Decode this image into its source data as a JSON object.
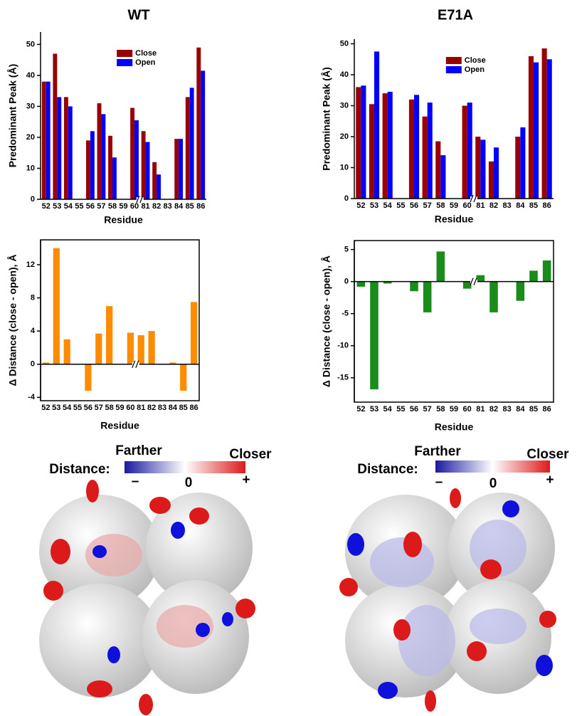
{
  "chart_data": [
    {
      "type": "bar",
      "title": "WT",
      "x_label": "Residue",
      "y_label": "Predominant Peak (Å)",
      "categories": [
        "52",
        "53",
        "54",
        "55",
        "56",
        "57",
        "58",
        "59",
        "60",
        "81",
        "82",
        "83",
        "84",
        "85",
        "86"
      ],
      "series": [
        {
          "name": "Close",
          "color": "#990000",
          "values": [
            38,
            47,
            33,
            null,
            19,
            31,
            20.5,
            null,
            29.5,
            22,
            12,
            null,
            19.5,
            33,
            49
          ]
        },
        {
          "name": "Open",
          "color": "#0000ff",
          "values": [
            38,
            33,
            30,
            null,
            22,
            27.5,
            13.5,
            null,
            25.5,
            18.5,
            8,
            null,
            19.5,
            36,
            41.5
          ]
        }
      ],
      "ylim": [
        0,
        54
      ],
      "yticks": [
        0,
        10,
        20,
        30,
        40,
        50
      ],
      "legend": "upper center",
      "frame": false
    },
    {
      "type": "bar",
      "title": "E71A",
      "x_label": "Residue",
      "y_label": "Predominant Peak (Å)",
      "categories": [
        "52",
        "53",
        "54",
        "55",
        "56",
        "57",
        "58",
        "59",
        "60",
        "81",
        "82",
        "83",
        "84",
        "85",
        "86"
      ],
      "series": [
        {
          "name": "Close",
          "color": "#990000",
          "values": [
            36,
            30.5,
            34,
            null,
            32,
            26.5,
            18.5,
            null,
            30,
            20,
            12,
            null,
            20,
            46,
            48.5
          ]
        },
        {
          "name": "Open",
          "color": "#0000ff",
          "values": [
            36.5,
            47.5,
            34.5,
            null,
            33.5,
            31,
            14,
            null,
            31,
            19,
            16.5,
            null,
            23,
            44,
            45
          ]
        }
      ],
      "ylim": [
        0,
        51.5
      ],
      "yticks": [
        0,
        10,
        20,
        30,
        40,
        50
      ],
      "legend": "upper center",
      "frame": false
    },
    {
      "type": "bar",
      "x_label": "Residue",
      "y_label": "Δ Distance (close - open), Å",
      "categories": [
        "52",
        "53",
        "54",
        "55",
        "56",
        "57",
        "58",
        "59",
        "60",
        "81",
        "82",
        "83",
        "84",
        "85",
        "86"
      ],
      "values": [
        0.2,
        14,
        3,
        null,
        -3.2,
        3.7,
        7,
        null,
        3.8,
        3.5,
        4,
        null,
        0.2,
        -3.2,
        7.5
      ],
      "color": "#ff8c00",
      "ylim": [
        -4.4,
        15
      ],
      "yticks": [
        -4,
        0,
        4,
        8,
        12
      ],
      "frame": true
    },
    {
      "type": "bar",
      "x_label": "Residue",
      "y_label": "Δ Distance (close - open), Å",
      "categories": [
        "52",
        "53",
        "54",
        "55",
        "56",
        "57",
        "58",
        "59",
        "60",
        "81",
        "82",
        "83",
        "84",
        "85",
        "86"
      ],
      "values": [
        -0.8,
        -16.8,
        -0.3,
        null,
        -1.5,
        -4.8,
        4.7,
        null,
        -1.1,
        1,
        -4.8,
        null,
        -3,
        1.7,
        3.3
      ],
      "color": "#1a8c1a",
      "ylim": [
        -18.8,
        6.4
      ],
      "yticks": [
        -15,
        -10,
        -5,
        0,
        5
      ],
      "frame": true
    }
  ],
  "color_scales": [
    {
      "title": "Distance:",
      "low": "Farther",
      "high": "Closer",
      "minus": "–",
      "zero": "0",
      "plus": "+"
    },
    {
      "title": "Distance:",
      "low": "Farther",
      "high": "Closer",
      "minus": "–",
      "zero": "0",
      "plus": "+"
    }
  ]
}
